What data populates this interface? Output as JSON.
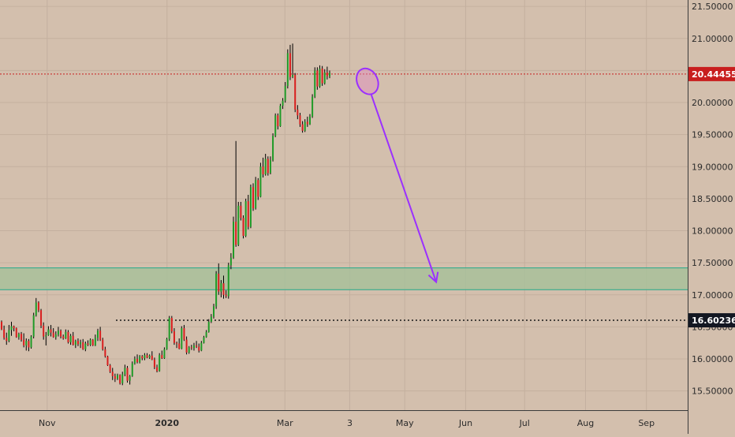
{
  "chart_data": {
    "type": "candlestick",
    "title": "",
    "xlabel": "",
    "ylabel": "",
    "ylim": [
      15.2,
      21.6
    ],
    "y_ticks": [
      "21.50000",
      "21.00000",
      "20.50000",
      "20.00000",
      "19.50000",
      "19.00000",
      "18.50000",
      "18.00000",
      "17.50000",
      "17.00000",
      "16.50000",
      "16.00000",
      "15.50000"
    ],
    "y_tick_values": [
      21.5,
      21.0,
      20.5,
      20.0,
      19.5,
      19.0,
      18.5,
      18.0,
      17.5,
      17.0,
      16.5,
      16.0,
      15.5
    ],
    "x_ticks": [
      {
        "label": "Nov",
        "bold": false,
        "date": "2019-11-01"
      },
      {
        "label": "2020",
        "bold": true,
        "date": "2020-01-01"
      },
      {
        "label": "Mar",
        "bold": false,
        "date": "2020-03-01"
      },
      {
        "label": "3",
        "bold": false,
        "date": "2020-04-03"
      },
      {
        "label": "May",
        "bold": false,
        "date": "2020-05-01"
      },
      {
        "label": "Jun",
        "bold": false,
        "date": "2020-06-01"
      },
      {
        "label": "Jul",
        "bold": false,
        "date": "2020-07-01"
      },
      {
        "label": "Aug",
        "bold": false,
        "date": "2020-08-01"
      },
      {
        "label": "Sep",
        "bold": false,
        "date": "2020-09-01"
      }
    ],
    "x_range": [
      "2019-10-08",
      "2020-09-22"
    ],
    "price_labels": [
      {
        "text": "20.44455",
        "value": 20.44455,
        "line": "dotted-red"
      },
      {
        "text": "16.60236",
        "value": 16.60236,
        "line": "dotted-dark"
      }
    ],
    "support_zone": {
      "low": 17.08,
      "high": 17.42,
      "color": "#a8c09a"
    },
    "projection_arrow": {
      "from": {
        "date": "2020-04-14",
        "value": 20.12
      },
      "to": {
        "date": "2020-05-17",
        "value": 17.2
      },
      "color": "#9b30ff"
    },
    "highlight_ellipse": {
      "date": "2020-04-12",
      "value": 20.33,
      "color": "#9b30ff"
    },
    "candles": [
      [
        16.58,
        16.6,
        16.45,
        16.46
      ],
      [
        16.46,
        16.52,
        16.3,
        16.33
      ],
      [
        16.33,
        16.41,
        16.22,
        16.28
      ],
      [
        16.28,
        16.53,
        16.26,
        16.45
      ],
      [
        16.45,
        16.58,
        16.36,
        16.51
      ],
      [
        16.51,
        16.52,
        16.43,
        16.48
      ],
      [
        16.48,
        16.49,
        16.33,
        16.34
      ],
      [
        16.34,
        16.41,
        16.3,
        16.39
      ],
      [
        16.39,
        16.42,
        16.27,
        16.3
      ],
      [
        16.3,
        16.4,
        16.18,
        16.21
      ],
      [
        16.21,
        16.32,
        16.13,
        16.28
      ],
      [
        16.28,
        16.31,
        16.12,
        16.18
      ],
      [
        16.18,
        16.37,
        16.16,
        16.35
      ],
      [
        16.35,
        16.72,
        16.32,
        16.68
      ],
      [
        16.68,
        16.95,
        16.66,
        16.88
      ],
      [
        16.88,
        16.9,
        16.73,
        16.76
      ],
      [
        16.76,
        16.78,
        16.48,
        16.52
      ],
      [
        16.52,
        16.57,
        16.3,
        16.35
      ],
      [
        16.35,
        16.42,
        16.21,
        16.37
      ],
      [
        16.37,
        16.51,
        16.36,
        16.46
      ],
      [
        16.46,
        16.53,
        16.35,
        16.41
      ],
      [
        16.41,
        16.48,
        16.33,
        16.34
      ],
      [
        16.34,
        16.43,
        16.3,
        16.38
      ],
      [
        16.38,
        16.5,
        16.35,
        16.44
      ],
      [
        16.44,
        16.46,
        16.32,
        16.35
      ],
      [
        16.35,
        16.38,
        16.3,
        16.32
      ],
      [
        16.32,
        16.46,
        16.31,
        16.42
      ],
      [
        16.42,
        16.45,
        16.24,
        16.26
      ],
      [
        16.26,
        16.39,
        16.22,
        16.36
      ],
      [
        16.36,
        16.42,
        16.21,
        16.22
      ],
      [
        16.22,
        16.3,
        16.17,
        16.28
      ],
      [
        16.28,
        16.32,
        16.2,
        16.23
      ],
      [
        16.23,
        16.3,
        16.17,
        16.26
      ],
      [
        16.26,
        16.31,
        16.14,
        16.15
      ],
      [
        16.15,
        16.27,
        16.12,
        16.24
      ],
      [
        16.24,
        16.29,
        16.2,
        16.22
      ],
      [
        16.22,
        16.32,
        16.2,
        16.3
      ],
      [
        16.3,
        16.31,
        16.2,
        16.21
      ],
      [
        16.21,
        16.38,
        16.2,
        16.33
      ],
      [
        16.33,
        16.47,
        16.28,
        16.44
      ],
      [
        16.44,
        16.5,
        16.28,
        16.3
      ],
      [
        16.3,
        16.33,
        16.13,
        16.15
      ],
      [
        16.15,
        16.19,
        16.02,
        16.04
      ],
      [
        16.04,
        16.05,
        15.89,
        15.9
      ],
      [
        15.9,
        15.92,
        15.78,
        15.8
      ],
      [
        15.8,
        15.86,
        15.67,
        15.73
      ],
      [
        15.73,
        15.77,
        15.64,
        15.69
      ],
      [
        15.69,
        15.77,
        15.67,
        15.75
      ],
      [
        15.75,
        15.76,
        15.6,
        15.62
      ],
      [
        15.62,
        15.8,
        15.59,
        15.76
      ],
      [
        15.76,
        15.91,
        15.73,
        15.86
      ],
      [
        15.86,
        15.89,
        15.63,
        15.66
      ],
      [
        15.66,
        15.75,
        15.6,
        15.73
      ],
      [
        15.73,
        15.96,
        15.72,
        15.93
      ],
      [
        15.93,
        16.04,
        15.91,
        16.0
      ],
      [
        16.0,
        16.07,
        15.93,
        15.95
      ],
      [
        15.95,
        16.06,
        15.93,
        16.04
      ],
      [
        16.04,
        16.06,
        15.98,
        16.01
      ],
      [
        16.01,
        16.09,
        15.98,
        16.06
      ],
      [
        16.06,
        16.09,
        16.01,
        16.02
      ],
      [
        16.02,
        16.07,
        16.0,
        16.05
      ],
      [
        16.05,
        16.12,
        15.98,
        15.99
      ],
      [
        15.99,
        16.02,
        15.84,
        15.87
      ],
      [
        15.87,
        15.91,
        15.79,
        15.81
      ],
      [
        15.81,
        16.09,
        15.8,
        16.06
      ],
      [
        16.06,
        16.13,
        16.0,
        16.01
      ],
      [
        16.01,
        16.18,
        16.0,
        16.15
      ],
      [
        16.15,
        16.33,
        16.14,
        16.31
      ],
      [
        16.31,
        16.67,
        16.28,
        16.64
      ],
      [
        16.64,
        16.67,
        16.4,
        16.43
      ],
      [
        16.43,
        16.48,
        16.22,
        16.25
      ],
      [
        16.25,
        16.27,
        16.17,
        16.24
      ],
      [
        16.24,
        16.32,
        16.15,
        16.16
      ],
      [
        16.16,
        16.51,
        16.15,
        16.48
      ],
      [
        16.48,
        16.53,
        16.28,
        16.3
      ],
      [
        16.3,
        16.35,
        16.07,
        16.1
      ],
      [
        16.1,
        16.2,
        16.08,
        16.18
      ],
      [
        16.18,
        16.22,
        16.14,
        16.17
      ],
      [
        16.17,
        16.25,
        16.13,
        16.21
      ],
      [
        16.21,
        16.28,
        16.17,
        16.19
      ],
      [
        16.19,
        16.24,
        16.1,
        16.13
      ],
      [
        16.13,
        16.28,
        16.12,
        16.25
      ],
      [
        16.25,
        16.36,
        16.24,
        16.34
      ],
      [
        16.34,
        16.45,
        16.33,
        16.42
      ],
      [
        16.42,
        16.62,
        16.41,
        16.58
      ],
      [
        16.58,
        16.7,
        16.56,
        16.66
      ],
      [
        16.66,
        16.86,
        16.63,
        16.82
      ],
      [
        16.82,
        17.37,
        16.78,
        17.33
      ],
      [
        17.33,
        17.49,
        17.0,
        17.05
      ],
      [
        17.05,
        17.23,
        16.96,
        17.18
      ],
      [
        17.18,
        17.3,
        16.94,
        17.0
      ],
      [
        17.0,
        17.07,
        16.95,
        16.98
      ],
      [
        16.98,
        17.5,
        16.94,
        17.46
      ],
      [
        17.46,
        17.65,
        17.4,
        17.58
      ],
      [
        17.58,
        18.22,
        17.56,
        18.14
      ],
      [
        18.14,
        19.4,
        17.75,
        17.78
      ],
      [
        17.78,
        18.45,
        17.76,
        18.39
      ],
      [
        18.39,
        18.45,
        18.16,
        18.2
      ],
      [
        18.2,
        18.24,
        17.88,
        17.92
      ],
      [
        17.92,
        18.5,
        17.9,
        18.46
      ],
      [
        18.46,
        18.56,
        18.02,
        18.06
      ],
      [
        18.06,
        18.72,
        18.04,
        18.68
      ],
      [
        18.68,
        18.74,
        18.31,
        18.35
      ],
      [
        18.35,
        18.84,
        18.33,
        18.79
      ],
      [
        18.79,
        18.82,
        18.48,
        18.53
      ],
      [
        18.53,
        19.06,
        18.52,
        19.0
      ],
      [
        19.0,
        19.14,
        18.83,
        18.88
      ],
      [
        18.88,
        19.2,
        18.86,
        19.12
      ],
      [
        19.12,
        19.16,
        18.86,
        18.9
      ],
      [
        18.9,
        19.16,
        18.88,
        19.1
      ],
      [
        19.1,
        19.52,
        19.08,
        19.48
      ],
      [
        19.48,
        19.83,
        19.46,
        19.8
      ],
      [
        19.8,
        19.83,
        19.58,
        19.63
      ],
      [
        19.63,
        19.98,
        19.62,
        19.95
      ],
      [
        19.95,
        20.07,
        19.9,
        20.03
      ],
      [
        20.03,
        20.32,
        20.0,
        20.26
      ],
      [
        20.26,
        20.83,
        20.22,
        20.77
      ],
      [
        20.77,
        20.9,
        20.35,
        20.4
      ],
      [
        20.4,
        20.92,
        20.38,
        20.43
      ],
      [
        20.43,
        20.46,
        19.85,
        19.89
      ],
      [
        19.89,
        19.96,
        19.74,
        19.8
      ],
      [
        19.8,
        19.84,
        19.62,
        19.66
      ],
      [
        19.66,
        19.71,
        19.53,
        19.56
      ],
      [
        19.56,
        19.74,
        19.54,
        19.7
      ],
      [
        19.7,
        19.78,
        19.62,
        19.66
      ],
      [
        19.66,
        19.82,
        19.65,
        19.78
      ],
      [
        19.78,
        20.13,
        19.76,
        20.09
      ],
      [
        20.09,
        20.55,
        20.07,
        20.5
      ],
      [
        20.5,
        20.55,
        20.2,
        20.25
      ],
      [
        20.25,
        20.58,
        20.23,
        20.53
      ],
      [
        20.53,
        20.57,
        20.26,
        20.3
      ],
      [
        20.3,
        20.52,
        20.28,
        20.47
      ],
      [
        20.47,
        20.56,
        20.36,
        20.41
      ],
      [
        20.41,
        20.5,
        20.38,
        20.46
      ]
    ]
  },
  "colors": {
    "background": "#d3bfad",
    "up": "#1f9a27",
    "down": "#d81e1e",
    "wick": "#000000",
    "grid": "#c4b09f",
    "axis_text": "#2b2b2b",
    "label_dark": "#131722",
    "label_red": "#c81e1e"
  }
}
